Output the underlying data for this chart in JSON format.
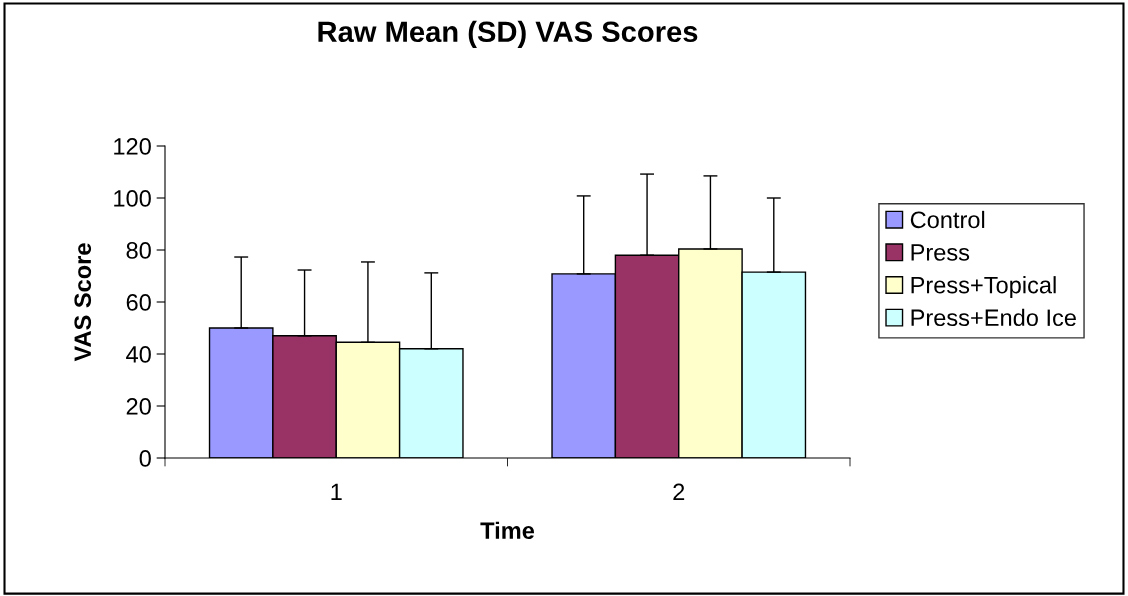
{
  "chart_data": {
    "type": "bar",
    "title": "Raw Mean (SD) VAS Scores",
    "xlabel": "Time",
    "ylabel": "VAS Score",
    "categories": [
      "1",
      "2"
    ],
    "series": [
      {
        "name": "Control",
        "color": "#9999ff",
        "values": [
          50,
          70.8
        ],
        "errors": [
          [
            50,
            77.3
          ],
          [
            70.8,
            100.8
          ]
        ]
      },
      {
        "name": "Press",
        "color": "#993366",
        "values": [
          47,
          78
        ],
        "errors": [
          [
            47,
            72.3
          ],
          [
            78,
            109.2
          ]
        ]
      },
      {
        "name": "Press+Topical",
        "color": "#ffffcc",
        "values": [
          44.5,
          80.4
        ],
        "errors": [
          [
            44.5,
            75.4
          ],
          [
            80.4,
            108.5
          ]
        ]
      },
      {
        "name": "Press+Endo Ice",
        "color": "#ccffff",
        "values": [
          42,
          71.5
        ],
        "errors": [
          [
            42,
            71.2
          ],
          [
            71.5,
            100
          ]
        ]
      }
    ],
    "ylim": [
      0,
      120
    ],
    "yticks": [
      0,
      20,
      40,
      60,
      80,
      100,
      120
    ],
    "legend": "right",
    "grid": false
  }
}
